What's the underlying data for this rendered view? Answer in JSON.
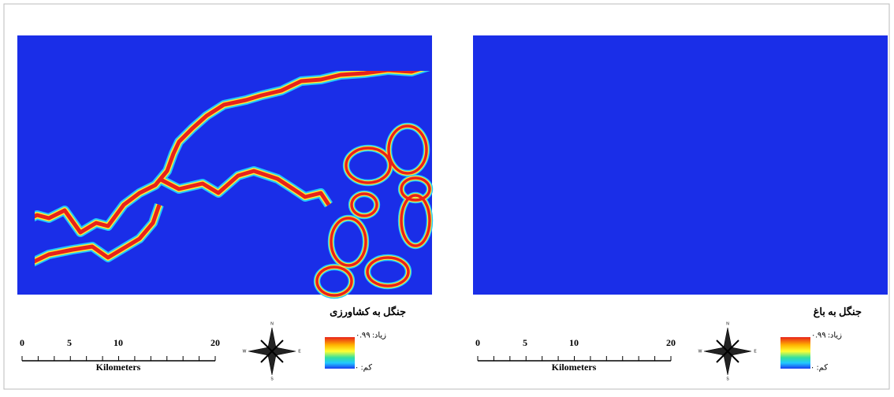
{
  "panels": [
    {
      "title": "جنگل به کشاورزی",
      "legend": {
        "high": "زیاد: ۰.۹۹",
        "low": "کم: ۰"
      },
      "scale_bar": {
        "ticks": [
          0,
          5,
          10,
          20
        ],
        "unit": "Kilometers"
      },
      "compass": {
        "n": "N",
        "e": "E",
        "s": "S",
        "w": "W"
      }
    },
    {
      "title": "جنگل به باغ",
      "legend": {
        "high": "زیاد: ۰.۹۹",
        "low": "کم: ۰"
      },
      "scale_bar": {
        "ticks": [
          0,
          5,
          10,
          20
        ],
        "unit": "Kilometers"
      },
      "compass": {
        "n": "N",
        "e": "E",
        "s": "S",
        "w": "W"
      }
    }
  ]
}
